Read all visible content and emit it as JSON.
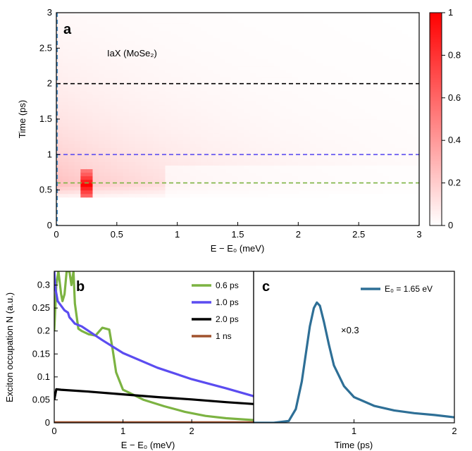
{
  "chart_data": [
    {
      "panel": "a",
      "type": "heatmap",
      "panel_label": "a",
      "annotation": "IaX (MoSe₂)",
      "xlabel": "E − E₀ (meV)",
      "ylabel": "Time (ps)",
      "xlim": [
        0,
        3
      ],
      "ylim": [
        0,
        3
      ],
      "xticks": [
        "0",
        "0.5",
        "1",
        "1.5",
        "2",
        "2.5",
        "3"
      ],
      "yticks": [
        "0",
        "0.5",
        "1",
        "1.5",
        "2",
        "2.5",
        "3"
      ],
      "colorbar": {
        "min": 0,
        "max": 1,
        "ticks": [
          "0",
          "0.2",
          "0.4",
          "0.6",
          "0.8",
          "1"
        ],
        "low_color": "#ffffff",
        "high_color": "#ff0000"
      },
      "hlines": [
        {
          "y": 2.0,
          "color": "#000000"
        },
        {
          "y": 1.0,
          "color": "#5b4cf0"
        },
        {
          "y": 0.6,
          "color": "#7cb342"
        }
      ],
      "vline": {
        "x": 0,
        "color": "#4a90c8"
      },
      "hot_spot": {
        "x_range": [
          0.18,
          0.28
        ],
        "t_range": [
          0.38,
          0.78
        ],
        "peak": 1.0
      },
      "grid": false
    },
    {
      "panel": "b",
      "type": "line",
      "panel_label": "b",
      "xlabel": "E − E₀ (meV)",
      "ylabel": "Exciton occupation N (a.u.)",
      "xlim": [
        0,
        2.9
      ],
      "ylim": [
        0,
        0.33
      ],
      "xticks": [
        "0",
        "1",
        "2"
      ],
      "yticks": [
        "0",
        "0.05",
        "0.1",
        "0.15",
        "0.2",
        "0.25",
        "0.3"
      ],
      "legend_position": "top-right",
      "series": [
        {
          "name": "0.6 ps",
          "color": "#7cb342",
          "x": [
            0.0,
            0.03,
            0.06,
            0.1,
            0.12,
            0.15,
            0.18,
            0.22,
            0.25,
            0.28,
            0.3,
            0.35,
            0.4,
            0.5,
            0.6,
            0.7,
            0.8,
            0.85,
            0.9,
            1.0,
            1.1,
            1.3,
            1.6,
            1.9,
            2.2,
            2.5,
            2.9
          ],
          "values": [
            0.2,
            0.3,
            0.33,
            0.28,
            0.265,
            0.28,
            0.33,
            0.33,
            0.3,
            0.33,
            0.26,
            0.205,
            0.2,
            0.193,
            0.19,
            0.207,
            0.203,
            0.16,
            0.11,
            0.072,
            0.065,
            0.05,
            0.036,
            0.024,
            0.015,
            0.01,
            0.006
          ]
        },
        {
          "name": "1.0 ps",
          "color": "#5b4cf0",
          "x": [
            0.0,
            0.02,
            0.05,
            0.1,
            0.15,
            0.2,
            0.22,
            0.25,
            0.3,
            0.4,
            0.5,
            0.7,
            1.0,
            1.5,
            2.0,
            2.5,
            2.9
          ],
          "values": [
            0.33,
            0.29,
            0.265,
            0.255,
            0.245,
            0.24,
            0.23,
            0.225,
            0.216,
            0.21,
            0.2,
            0.18,
            0.152,
            0.12,
            0.095,
            0.075,
            0.058
          ]
        },
        {
          "name": "2.0 ps",
          "color": "#000000",
          "x": [
            0.0,
            0.03,
            0.1,
            0.5,
            1.0,
            1.5,
            2.0,
            2.5,
            2.9
          ],
          "values": [
            0.05,
            0.073,
            0.072,
            0.068,
            0.062,
            0.056,
            0.051,
            0.045,
            0.041
          ]
        },
        {
          "name": "1 ns",
          "color": "#a0522d",
          "x": [
            0.0,
            2.9
          ],
          "values": [
            0.001,
            0.001
          ]
        }
      ]
    },
    {
      "panel": "c",
      "type": "line",
      "panel_label": "c",
      "xlabel": "Time (ps)",
      "xlim": [
        0,
        2
      ],
      "xticks": [
        "1",
        "2"
      ],
      "annotation": "×0.3",
      "legend_position": "top-right",
      "series": [
        {
          "name": "E₀ = 1.65 eV",
          "color": "#2e6f96",
          "x": [
            0.0,
            0.2,
            0.35,
            0.42,
            0.48,
            0.52,
            0.56,
            0.6,
            0.63,
            0.66,
            0.7,
            0.75,
            0.8,
            0.9,
            1.0,
            1.2,
            1.4,
            1.6,
            1.8,
            2.0
          ],
          "values": [
            0.0,
            0.0,
            0.004,
            0.03,
            0.09,
            0.15,
            0.21,
            0.25,
            0.262,
            0.255,
            0.22,
            0.17,
            0.125,
            0.08,
            0.056,
            0.037,
            0.027,
            0.021,
            0.017,
            0.012
          ]
        }
      ]
    }
  ]
}
